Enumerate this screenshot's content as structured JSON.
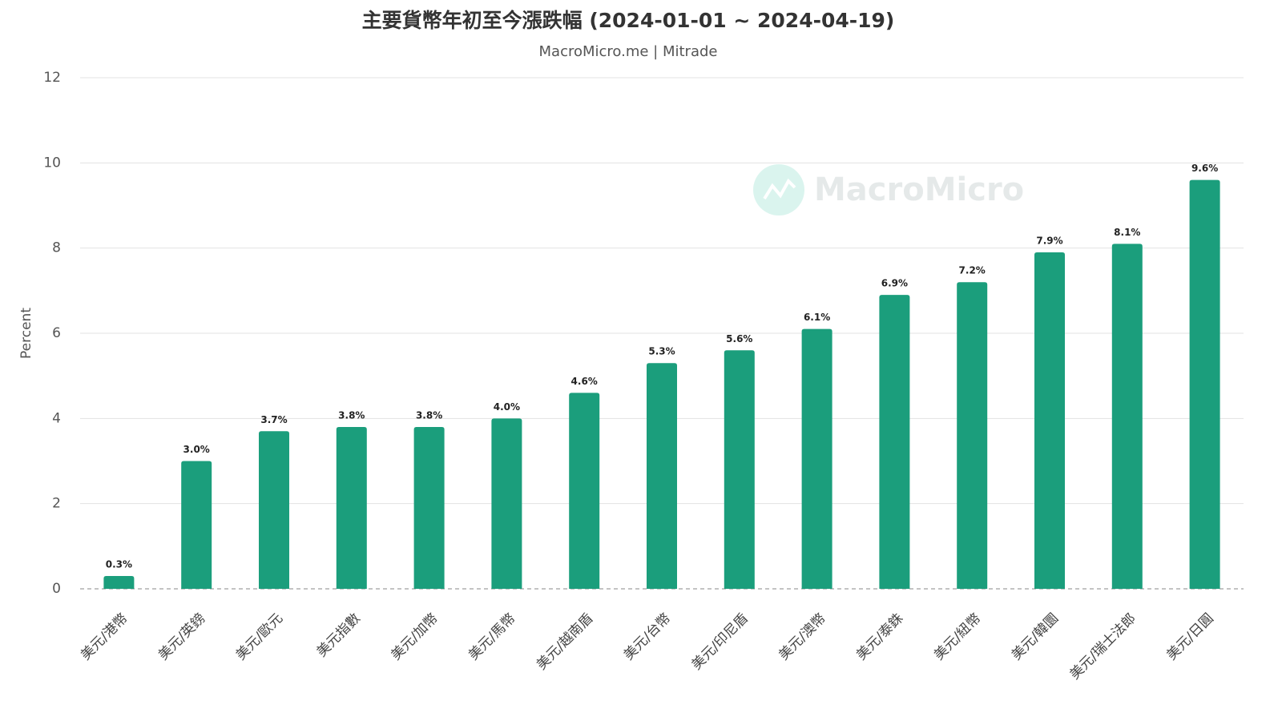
{
  "chart_data": {
    "type": "bar",
    "title": "主要貨幣年初至今漲跌幅 (2024-01-01 ~ 2024-04-19)",
    "subtitle": "MacroMicro.me | Mitrade",
    "watermark": "MacroMicro",
    "y_label": "Percent",
    "categories": [
      "美元/港幣",
      "美元/英鎊",
      "美元/歐元",
      "美元指數",
      "美元/加幣",
      "美元/馬幣",
      "美元/越南盾",
      "美元/台幣",
      "美元/印尼盾",
      "美元/澳幣",
      "美元/泰銖",
      "美元/紐幣",
      "美元/韓圜",
      "美元/瑞士法郎",
      "美元/日圓"
    ],
    "values": [
      0.3,
      3.0,
      3.7,
      3.8,
      3.8,
      4.0,
      4.6,
      5.3,
      5.6,
      6.1,
      6.9,
      7.2,
      7.9,
      8.1,
      9.6
    ],
    "value_labels": [
      "0.3%",
      "3.0%",
      "3.7%",
      "3.8%",
      "3.8%",
      "4.0%",
      "4.6%",
      "5.3%",
      "5.6%",
      "6.1%",
      "6.9%",
      "7.2%",
      "7.9%",
      "8.1%",
      "9.6%"
    ],
    "color": "#1b9e7c",
    "ylim": [
      0,
      12
    ],
    "yticks": [
      0,
      2,
      4,
      6,
      8,
      10,
      12
    ],
    "grid": true
  }
}
